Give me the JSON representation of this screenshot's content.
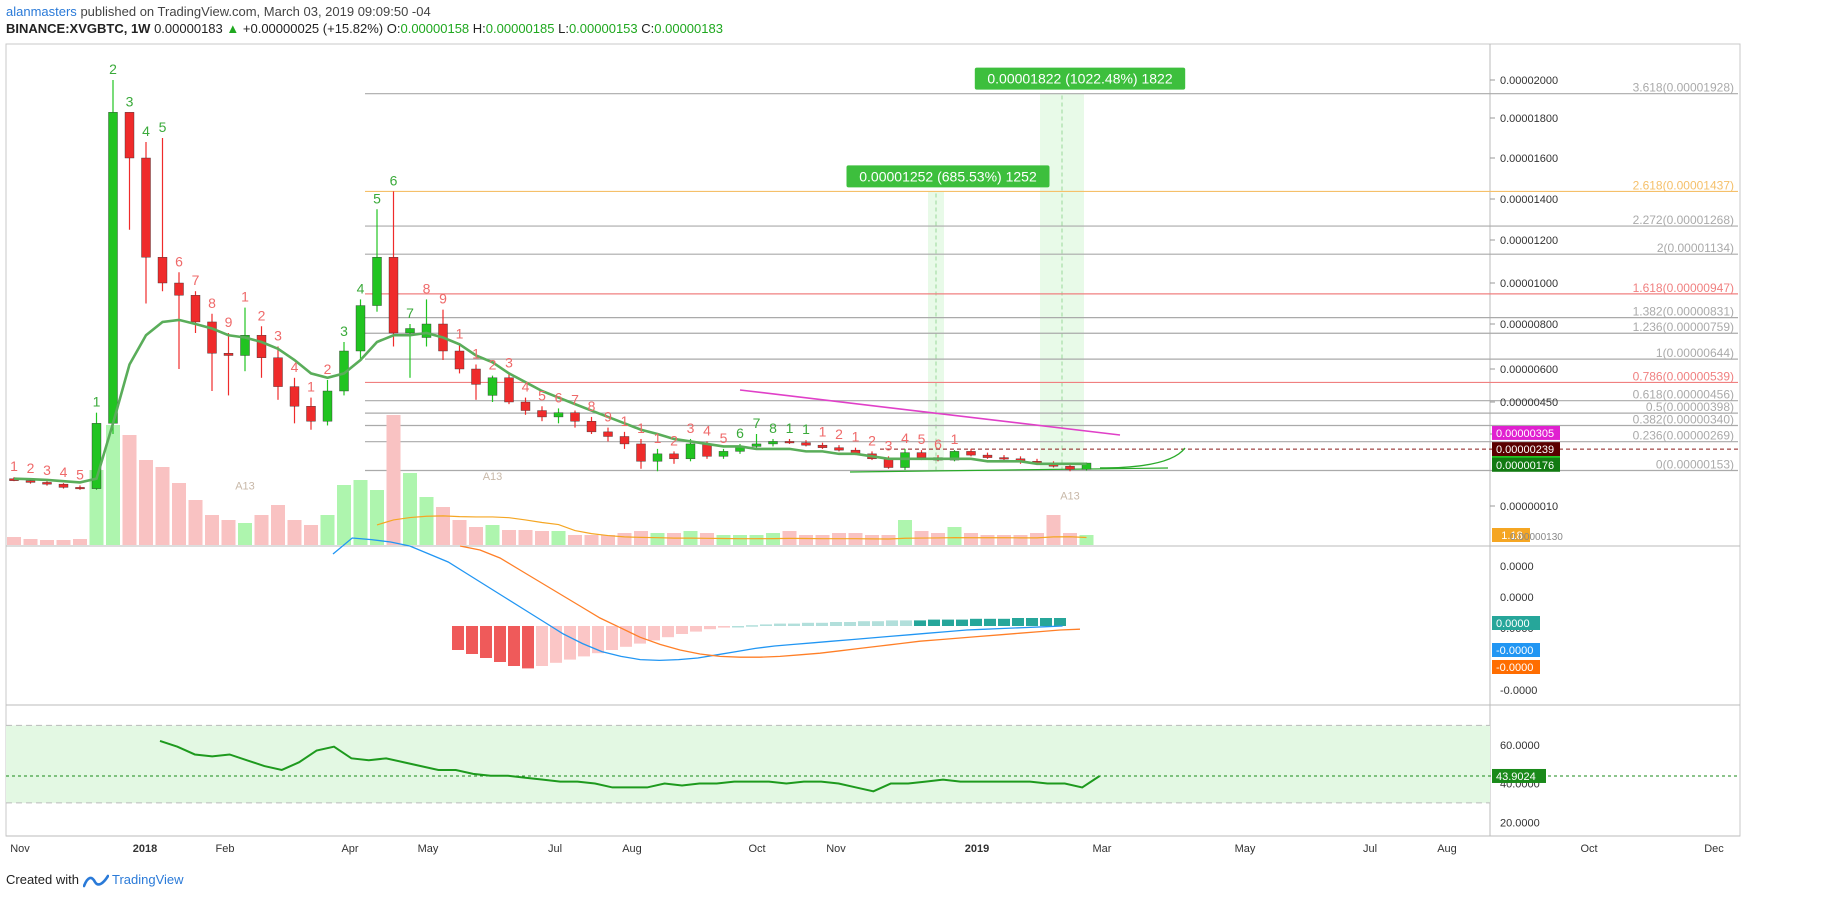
{
  "header": {
    "user": "alanmasters",
    "published": "published on TradingView.com, March 03, 2019 09:09:50 -04",
    "symbol": "BINANCE:XVGBTC, 1W",
    "price": "0.00000183",
    "change": "+0.00000025 (+15.82%)",
    "o_label": "O:",
    "o": "0.00000158",
    "h_label": "H:",
    "h": "0.00000185",
    "l_label": "L:",
    "l": "0.00000153",
    "c_label": "C:",
    "c": "0.00000183"
  },
  "footer": {
    "created_with": "Created with",
    "brand": "TradingView"
  },
  "colors": {
    "up": "#21c421",
    "down": "#ef2b2b",
    "ema": "#5aad5a",
    "fib": "#aaaaaa",
    "fib_hl": "#f08080",
    "fib_gold": "#f5c06a",
    "macd": "#2196f3",
    "signal": "#ff7f27",
    "rsi": "#1e9a1e",
    "measure": "#3dbf3d"
  },
  "chart_data": [
    {
      "type": "candlestick",
      "title": "BINANCE:XVGBTC, 1W",
      "ylim": [
        0,
        2.1e-05
      ],
      "y_ticks": [
        "0.00002000",
        "0.00001800",
        "0.00001600",
        "0.00001400",
        "0.00001200",
        "0.00001000",
        "0.00000800",
        "0.00000600",
        "0.00000450",
        "0.00000300",
        "0.00000010"
      ],
      "x_ticks": [
        "Nov",
        "2018",
        "Feb",
        "Apr",
        "May",
        "Jul",
        "Aug",
        "Oct",
        "Nov",
        "2019",
        "Mar",
        "May",
        "Jul",
        "Aug",
        "Oct",
        "Dec"
      ],
      "candles": [
        {
          "o": 1.2e-06,
          "h": 1.26e-06,
          "l": 1.1e-06,
          "c": 1.12e-06
        },
        {
          "o": 1.12e-06,
          "h": 1.18e-06,
          "l": 1e-06,
          "c": 1.05e-06
        },
        {
          "o": 1.05e-06,
          "h": 1.1e-06,
          "l": 9.2e-07,
          "c": 9.8e-07
        },
        {
          "o": 9.8e-07,
          "h": 1.02e-06,
          "l": 8e-07,
          "c": 8.5e-07
        },
        {
          "o": 8.5e-07,
          "h": 9.3e-07,
          "l": 7.5e-07,
          "c": 8e-07
        },
        {
          "o": 8e-07,
          "h": 4e-06,
          "l": 7.5e-07,
          "c": 3.5e-06
        },
        {
          "o": 3.5e-06,
          "h": 2e-05,
          "l": 3e-06,
          "c": 1.83e-05
        },
        {
          "o": 1.83e-05,
          "h": 1.83e-05,
          "l": 1.25e-05,
          "c": 1.6e-05
        },
        {
          "o": 1.6e-05,
          "h": 1.68e-05,
          "l": 9e-06,
          "c": 1.12e-05
        },
        {
          "o": 1.12e-05,
          "h": 1.7e-05,
          "l": 9.6e-06,
          "c": 1e-05
        },
        {
          "o": 1e-05,
          "h": 1.05e-05,
          "l": 6e-06,
          "c": 9.4e-06
        },
        {
          "o": 9.4e-06,
          "h": 9.6e-06,
          "l": 7.6e-06,
          "c": 8.1e-06
        },
        {
          "o": 8.1e-06,
          "h": 8.5e-06,
          "l": 5e-06,
          "c": 6.7e-06
        },
        {
          "o": 6.7e-06,
          "h": 7.6e-06,
          "l": 4.8e-06,
          "c": 6.6e-06
        },
        {
          "o": 6.6e-06,
          "h": 8.8e-06,
          "l": 5.9e-06,
          "c": 7.5e-06
        },
        {
          "o": 7.5e-06,
          "h": 7.9e-06,
          "l": 5.6e-06,
          "c": 6.5e-06
        },
        {
          "o": 6.5e-06,
          "h": 7e-06,
          "l": 4.6e-06,
          "c": 5.2e-06
        },
        {
          "o": 5.2e-06,
          "h": 5.6e-06,
          "l": 3.5e-06,
          "c": 4.3e-06
        },
        {
          "o": 4.3e-06,
          "h": 4.7e-06,
          "l": 3.2e-06,
          "c": 3.6e-06
        },
        {
          "o": 3.6e-06,
          "h": 5.5e-06,
          "l": 3.4e-06,
          "c": 5e-06
        },
        {
          "o": 5e-06,
          "h": 7.2e-06,
          "l": 4.8e-06,
          "c": 6.8e-06
        },
        {
          "o": 6.8e-06,
          "h": 9.2e-06,
          "l": 6.4e-06,
          "c": 8.9e-06
        },
        {
          "o": 8.9e-06,
          "h": 1.35e-05,
          "l": 8.6e-06,
          "c": 1.12e-05
        },
        {
          "o": 1.12e-05,
          "h": 1.437e-05,
          "l": 7e-06,
          "c": 7.6e-06
        },
        {
          "o": 7.6e-06,
          "h": 8e-06,
          "l": 5.6e-06,
          "c": 7.8e-06
        },
        {
          "o": 7.4e-06,
          "h": 9.2e-06,
          "l": 7e-06,
          "c": 8e-06
        },
        {
          "o": 8e-06,
          "h": 8.7e-06,
          "l": 6.4e-06,
          "c": 6.8e-06
        },
        {
          "o": 6.8e-06,
          "h": 7.1e-06,
          "l": 5.8e-06,
          "c": 6e-06
        },
        {
          "o": 6e-06,
          "h": 6.2e-06,
          "l": 4.6e-06,
          "c": 5.3e-06
        },
        {
          "o": 4.8e-06,
          "h": 5.7e-06,
          "l": 4.5e-06,
          "c": 5.6e-06
        },
        {
          "o": 5.6e-06,
          "h": 5.8e-06,
          "l": 4.4e-06,
          "c": 4.5e-06
        },
        {
          "o": 4.5e-06,
          "h": 4.7e-06,
          "l": 3.9e-06,
          "c": 4.1e-06
        },
        {
          "o": 4.1e-06,
          "h": 4.3e-06,
          "l": 3.6e-06,
          "c": 3.8e-06
        },
        {
          "o": 3.8e-06,
          "h": 4.2e-06,
          "l": 3.5e-06,
          "c": 4e-06
        },
        {
          "o": 4e-06,
          "h": 4.1e-06,
          "l": 3.3e-06,
          "c": 3.6e-06
        },
        {
          "o": 3.6e-06,
          "h": 3.8e-06,
          "l": 3e-06,
          "c": 3.1e-06
        },
        {
          "o": 3.1e-06,
          "h": 3.3e-06,
          "l": 2.7e-06,
          "c": 2.9e-06
        },
        {
          "o": 2.9e-06,
          "h": 3.1e-06,
          "l": 2.4e-06,
          "c": 2.6e-06
        },
        {
          "o": 2.6e-06,
          "h": 2.8e-06,
          "l": 1.6e-06,
          "c": 1.9e-06
        },
        {
          "o": 1.9e-06,
          "h": 2.4e-06,
          "l": 1.5e-06,
          "c": 2.2e-06
        },
        {
          "o": 2.2e-06,
          "h": 2.3e-06,
          "l": 1.8e-06,
          "c": 2e-06
        },
        {
          "o": 2e-06,
          "h": 2.8e-06,
          "l": 1.9e-06,
          "c": 2.6e-06
        },
        {
          "o": 2.6e-06,
          "h": 2.7e-06,
          "l": 2e-06,
          "c": 2.1e-06
        },
        {
          "o": 2.1e-06,
          "h": 2.4e-06,
          "l": 2e-06,
          "c": 2.3e-06
        },
        {
          "o": 2.3e-06,
          "h": 2.6e-06,
          "l": 2.2e-06,
          "c": 2.5e-06
        },
        {
          "o": 2.5e-06,
          "h": 3e-06,
          "l": 2.4e-06,
          "c": 2.6e-06
        },
        {
          "o": 2.6e-06,
          "h": 2.8e-06,
          "l": 2.5e-06,
          "c": 2.7e-06
        },
        {
          "o": 2.7e-06,
          "h": 2.8e-06,
          "l": 2.6e-06,
          "c": 2.65e-06
        },
        {
          "o": 2.65e-06,
          "h": 2.75e-06,
          "l": 2.5e-06,
          "c": 2.55e-06
        },
        {
          "o": 2.55e-06,
          "h": 2.65e-06,
          "l": 2.4e-06,
          "c": 2.45e-06
        },
        {
          "o": 2.45e-06,
          "h": 2.55e-06,
          "l": 2.3e-06,
          "c": 2.35e-06
        },
        {
          "o": 2.35e-06,
          "h": 2.45e-06,
          "l": 2.15e-06,
          "c": 2.2e-06
        },
        {
          "o": 2.2e-06,
          "h": 2.3e-06,
          "l": 1.95e-06,
          "c": 2e-06
        },
        {
          "o": 2e-06,
          "h": 2.1e-06,
          "l": 1.6e-06,
          "c": 1.65e-06
        },
        {
          "o": 1.65e-06,
          "h": 2.4e-06,
          "l": 1.55e-06,
          "c": 2.25e-06
        },
        {
          "o": 2.25e-06,
          "h": 2.35e-06,
          "l": 1.95e-06,
          "c": 2.05e-06
        },
        {
          "o": 2.05e-06,
          "h": 2.15e-06,
          "l": 1.9e-06,
          "c": 1.95e-06
        },
        {
          "o": 1.95e-06,
          "h": 2.35e-06,
          "l": 1.9e-06,
          "c": 2.3e-06
        },
        {
          "o": 2.3e-06,
          "h": 2.4e-06,
          "l": 2.1e-06,
          "c": 2.15e-06
        },
        {
          "o": 2.15e-06,
          "h": 2.25e-06,
          "l": 2e-06,
          "c": 2.05e-06
        },
        {
          "o": 2.05e-06,
          "h": 2.15e-06,
          "l": 1.9e-06,
          "c": 2e-06
        },
        {
          "o": 2e-06,
          "h": 2.1e-06,
          "l": 1.8e-06,
          "c": 1.9e-06
        },
        {
          "o": 1.9e-06,
          "h": 2e-06,
          "l": 1.75e-06,
          "c": 1.8e-06
        },
        {
          "o": 1.8e-06,
          "h": 1.9e-06,
          "l": 1.65e-06,
          "c": 1.7e-06
        },
        {
          "o": 1.7e-06,
          "h": 1.75e-06,
          "l": 1.5e-06,
          "c": 1.58e-06
        },
        {
          "o": 1.58e-06,
          "h": 1.85e-06,
          "l": 1.53e-06,
          "c": 1.83e-06
        }
      ],
      "ema": [
        1.2e-06,
        1.18e-06,
        1.15e-06,
        1.1e-06,
        1.05e-06,
        1.2e-06,
        3.5e-06,
        6.2e-06,
        7.5e-06,
        8.1e-06,
        8.2e-06,
        8e-06,
        7.8e-06,
        7.5e-06,
        7.4e-06,
        7.2e-06,
        6.9e-06,
        6.4e-06,
        5.8e-06,
        5.6e-06,
        5.8e-06,
        6.4e-06,
        7.2e-06,
        7.5e-06,
        7.5e-06,
        7.6e-06,
        7.4e-06,
        7.1e-06,
        6.6e-06,
        6.3e-06,
        5.8e-06,
        5.4e-06,
        5e-06,
        4.7e-06,
        4.4e-06,
        4.1e-06,
        3.8e-06,
        3.5e-06,
        3.2e-06,
        3e-06,
        2.8e-06,
        2.7e-06,
        2.6e-06,
        2.5e-06,
        2.5e-06,
        2.4e-06,
        2.4e-06,
        2.4e-06,
        2.3e-06,
        2.3e-06,
        2.2e-06,
        2.2e-06,
        2.1e-06,
        2e-06,
        2e-06,
        2e-06,
        2e-06,
        2e-06,
        2e-06,
        1.9e-06,
        1.9e-06,
        1.9e-06,
        1.8e-06,
        1.8e-06,
        1.8e-06,
        1.8e-06
      ],
      "volume": [
        8,
        6,
        5,
        5,
        6,
        75,
        120,
        110,
        85,
        78,
        62,
        45,
        30,
        25,
        22,
        30,
        40,
        25,
        20,
        30,
        60,
        65,
        55,
        130,
        72,
        48,
        38,
        25,
        18,
        20,
        15,
        15,
        14,
        14,
        10,
        10,
        10,
        12,
        14,
        12,
        12,
        14,
        12,
        10,
        10,
        10,
        12,
        14,
        10,
        10,
        12,
        12,
        10,
        10,
        25,
        14,
        12,
        18,
        12,
        10,
        10,
        10,
        12,
        30,
        12,
        10
      ],
      "volume_ma_label": "1.18",
      "volume_scale_label": "0.00000130",
      "fib_levels": [
        {
          "ratio": "3.618",
          "price": "0.00001928",
          "value": 1.928e-05
        },
        {
          "ratio": "2.618",
          "price": "0.00001437",
          "value": 1.437e-05
        },
        {
          "ratio": "2.272",
          "price": "0.00001268",
          "value": 1.268e-05
        },
        {
          "ratio": "2",
          "price": "0.00001134",
          "value": 1.134e-05
        },
        {
          "ratio": "1.618",
          "price": "0.00000947",
          "value": 9.47e-06
        },
        {
          "ratio": "1.382",
          "price": "0.00000831",
          "value": 8.31e-06
        },
        {
          "ratio": "1.236",
          "price": "0.00000759",
          "value": 7.59e-06
        },
        {
          "ratio": "1",
          "price": "0.00000644",
          "value": 6.44e-06
        },
        {
          "ratio": "0.786",
          "price": "0.00000539",
          "value": 5.39e-06
        },
        {
          "ratio": "0.618",
          "price": "0.00000456",
          "value": 4.56e-06
        },
        {
          "ratio": "0.5",
          "price": "0.00000398",
          "value": 3.98e-06
        },
        {
          "ratio": "0.382",
          "price": "0.00000340",
          "value": 3.4e-06
        },
        {
          "ratio": "0.236",
          "price": "0.00000269",
          "value": 2.69e-06
        },
        {
          "ratio": "0",
          "price": "0.00000153",
          "value": 1.53e-06
        }
      ],
      "measure_boxes": [
        {
          "label": "0.00001822 (1022.48%) 1822",
          "target": 1.928e-05
        },
        {
          "label": "0.00001252 (685.53%) 1252",
          "target": 1.437e-05
        }
      ],
      "price_tags": [
        {
          "text": "0.00000305",
          "color": "#e020d0",
          "value": 3.05e-06
        },
        {
          "text": "0.00000239",
          "color": "#5a0000",
          "value": 2.39e-06
        },
        {
          "text": "0.00000183",
          "color": "#1fc41f",
          "value": 1.83e-06
        },
        {
          "text": "0.00000176",
          "color": "#127a12",
          "value": 1.76e-06
        }
      ],
      "td_labels_top": [
        "1",
        "2",
        "3",
        "4",
        "5",
        "1",
        "2",
        "3",
        "4",
        "5",
        "6",
        "7",
        "8",
        "9",
        "1",
        "2",
        "3",
        "4",
        "1",
        "2",
        "3",
        "4",
        "5",
        "6",
        "7",
        "8",
        "9",
        "1",
        "1",
        "2",
        "3",
        "4",
        "5",
        "6",
        "7",
        "8",
        "9",
        "1",
        "1",
        "1",
        "2",
        "3",
        "4",
        "5",
        "6",
        "7",
        "8",
        "1",
        "1",
        "1",
        "2",
        "1",
        "2",
        "3",
        "4",
        "5",
        "6",
        "1"
      ],
      "td_setup_marker": "A13"
    },
    {
      "type": "line",
      "title": "MACD",
      "y_ticks": [
        "0.0000",
        "0.0000",
        "0.0000",
        "-0.0000"
      ],
      "tags": [
        {
          "text": "0.0000",
          "color": "#26a69a"
        },
        {
          "text": "-0.0000",
          "color": "#2196f3"
        },
        {
          "text": "-0.0000",
          "color": "#ff6d00"
        }
      ],
      "macd": [
        0.8,
        1.0,
        0.98,
        0.95,
        0.9,
        0.8,
        0.7,
        0.55,
        0.4,
        0.25,
        0.1,
        -0.05,
        -0.2,
        -0.32,
        -0.42,
        -0.48,
        -0.52,
        -0.53,
        -0.52,
        -0.5,
        -0.46,
        -0.42,
        -0.38,
        -0.35,
        -0.33,
        -0.31,
        -0.29,
        -0.27,
        -0.25,
        -0.23,
        -0.21,
        -0.19,
        -0.17,
        -0.15,
        -0.14,
        -0.13,
        -0.12,
        -0.11,
        -0.1
      ],
      "signal": [
        0.9,
        0.85,
        0.75,
        0.6,
        0.45,
        0.3,
        0.15,
        0.0,
        -0.12,
        -0.24,
        -0.33,
        -0.4,
        -0.45,
        -0.48,
        -0.49,
        -0.49,
        -0.48,
        -0.46,
        -0.44,
        -0.41,
        -0.38,
        -0.35,
        -0.32,
        -0.29,
        -0.27,
        -0.25,
        -0.23,
        -0.21,
        -0.19,
        -0.17,
        -0.15,
        -0.14
      ],
      "histogram": [
        -0.3,
        -0.35,
        -0.4,
        -0.45,
        -0.5,
        -0.53,
        -0.5,
        -0.46,
        -0.42,
        -0.38,
        -0.34,
        -0.3,
        -0.26,
        -0.22,
        -0.18,
        -0.14,
        -0.1,
        -0.07,
        -0.04,
        -0.02,
        0.0,
        0.01,
        0.02,
        0.03,
        0.03,
        0.04,
        0.04,
        0.05,
        0.05,
        0.06,
        0.06,
        0.07,
        0.07,
        0.07,
        0.08,
        0.08,
        0.08,
        0.09,
        0.09,
        0.09,
        0.1,
        0.1,
        0.1,
        0.1
      ]
    },
    {
      "type": "line",
      "title": "RSI",
      "y_ticks": [
        "60.0000",
        "40.0000",
        "20.0000"
      ],
      "ylim": [
        15,
        80
      ],
      "band": [
        30,
        70
      ],
      "current_label": "43.9024",
      "current": 43.9024,
      "values": [
        62,
        59,
        55,
        54,
        55,
        52,
        49,
        47,
        51,
        57,
        59,
        53,
        52,
        53,
        51,
        49,
        47,
        47,
        45,
        44,
        44,
        43,
        42,
        41,
        41,
        40,
        38,
        38,
        38,
        40,
        39,
        40,
        40,
        41,
        41,
        41,
        40,
        41,
        41,
        40,
        38,
        36,
        40,
        40,
        41,
        42,
        41,
        41,
        41,
        41,
        41,
        40,
        40,
        38,
        43.9
      ]
    }
  ]
}
